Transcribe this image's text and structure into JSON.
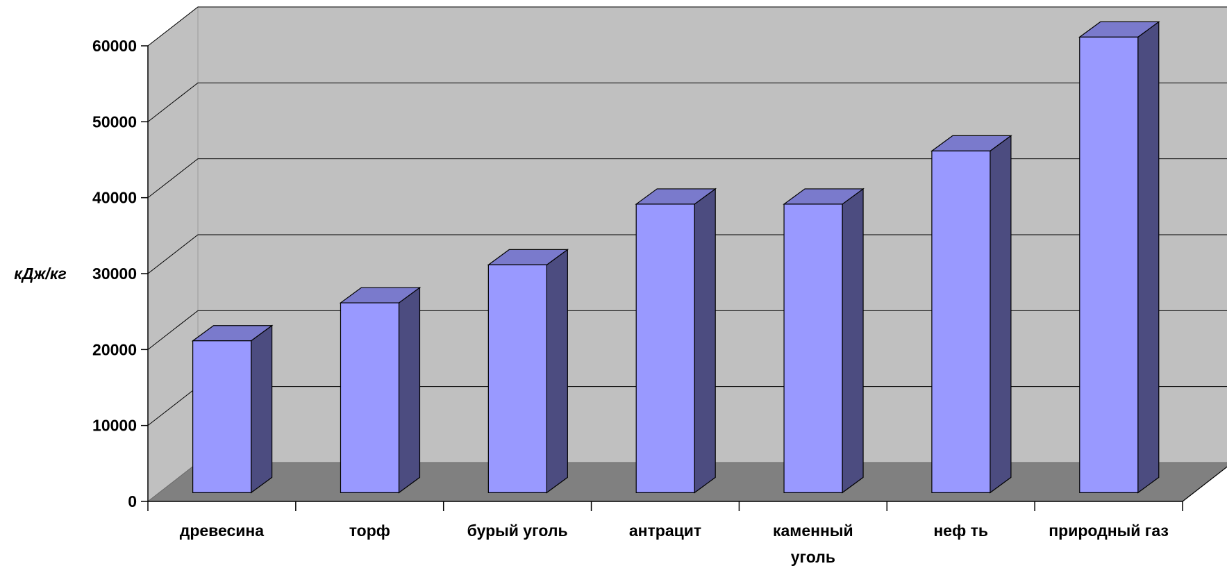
{
  "chart_data": {
    "type": "bar",
    "title": "",
    "xlabel": "",
    "ylabel": "кДж/кг",
    "categories": [
      [
        "древесина"
      ],
      [
        "торф"
      ],
      [
        "бурый уголь"
      ],
      [
        "антрацит"
      ],
      [
        "каменный",
        "уголь"
      ],
      [
        "неф ть"
      ],
      [
        "природный газ"
      ]
    ],
    "values": [
      20000,
      25000,
      30000,
      38000,
      38000,
      45000,
      60000
    ],
    "ylim": [
      0,
      60000
    ],
    "yticks": [
      0,
      10000,
      20000,
      30000,
      40000,
      50000,
      60000
    ],
    "grid": true,
    "three_d": true,
    "colors": {
      "wall": "#c0c0c0",
      "floor": "#808080",
      "bar_front": "#9999ff",
      "bar_top": "#7a7acc",
      "bar_side": "#4c4c80",
      "outline": "#000000"
    }
  }
}
